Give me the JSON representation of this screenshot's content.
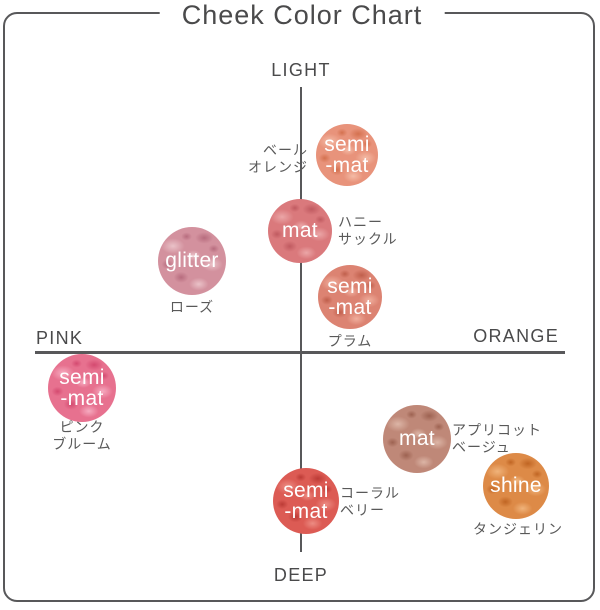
{
  "title": "Cheek Color Chart",
  "axes": {
    "top": "LIGHT",
    "bottom": "DEEP",
    "left": "PINK",
    "right": "ORANGE"
  },
  "swatches": [
    {
      "id": "pale-orange",
      "finish": "semi\n-mat",
      "name": "ベール\nオレンジ",
      "colors": {
        "base": "#E8937B",
        "light": "#F4BBA6",
        "dark": "#D4714F"
      }
    },
    {
      "id": "honeysuckle",
      "finish": "mat",
      "name": "ハニー\nサックル",
      "colors": {
        "base": "#DA797C",
        "light": "#EBA6A7",
        "dark": "#C05A60"
      }
    },
    {
      "id": "rose",
      "finish": "glitter",
      "name": "ローズ",
      "colors": {
        "base": "#D3919E",
        "light": "#EAC2C8",
        "dark": "#B76C7E"
      }
    },
    {
      "id": "plum",
      "finish": "semi\n-mat",
      "name": "プラム",
      "colors": {
        "base": "#DC8372",
        "light": "#F0AE9D",
        "dark": "#C05F4C"
      }
    },
    {
      "id": "pink-bloom",
      "finish": "semi\n-mat",
      "name": "ピンク\nブルーム",
      "colors": {
        "base": "#E7718F",
        "light": "#F6ABC0",
        "dark": "#D44A70"
      }
    },
    {
      "id": "apricot-beige",
      "finish": "mat",
      "name": "アプリコット\nベージュ",
      "colors": {
        "base": "#BF8878",
        "light": "#DCB5A6",
        "dark": "#9D6251"
      }
    },
    {
      "id": "coral-berry",
      "finish": "semi\n-mat",
      "name": "コーラル\nベリー",
      "colors": {
        "base": "#DC5B54",
        "light": "#EC8C83",
        "dark": "#BC3B36"
      }
    },
    {
      "id": "tangerine",
      "finish": "shine",
      "name": "タンジェリン",
      "colors": {
        "base": "#DD8A47",
        "light": "#F0B37A",
        "dark": "#C06523"
      }
    }
  ],
  "chart_data": {
    "type": "scatter",
    "title": "Cheek Color Chart",
    "x_axis": {
      "negative_label": "PINK",
      "positive_label": "ORANGE",
      "range": [
        -1,
        1
      ]
    },
    "y_axis": {
      "positive_label": "LIGHT",
      "negative_label": "DEEP",
      "range": [
        -1,
        1
      ]
    },
    "legend": "none",
    "grid": false,
    "points": [
      {
        "name": "ベールオレンジ",
        "finish": "semi-mat",
        "x": 0.17,
        "y": 0.74,
        "color": "#E8937B"
      },
      {
        "name": "ハニーサックル",
        "finish": "mat",
        "x": 0.0,
        "y": 0.45,
        "color": "#DA797C"
      },
      {
        "name": "ローズ",
        "finish": "glitter",
        "x": -0.41,
        "y": 0.34,
        "color": "#D3919E"
      },
      {
        "name": "プラム",
        "finish": "semi-mat",
        "x": 0.19,
        "y": 0.2,
        "color": "#DC8372"
      },
      {
        "name": "ピンクブルーム",
        "finish": "semi-mat",
        "x": -0.83,
        "y": -0.18,
        "color": "#E7718F"
      },
      {
        "name": "アプリコットベージュ",
        "finish": "mat",
        "x": 0.44,
        "y": -0.44,
        "color": "#BF8878"
      },
      {
        "name": "コーラルベリー",
        "finish": "semi-mat",
        "x": 0.02,
        "y": -0.75,
        "color": "#DC5B54"
      },
      {
        "name": "タンジェリン",
        "finish": "shine",
        "x": 0.81,
        "y": -0.67,
        "color": "#DD8A47"
      }
    ]
  }
}
